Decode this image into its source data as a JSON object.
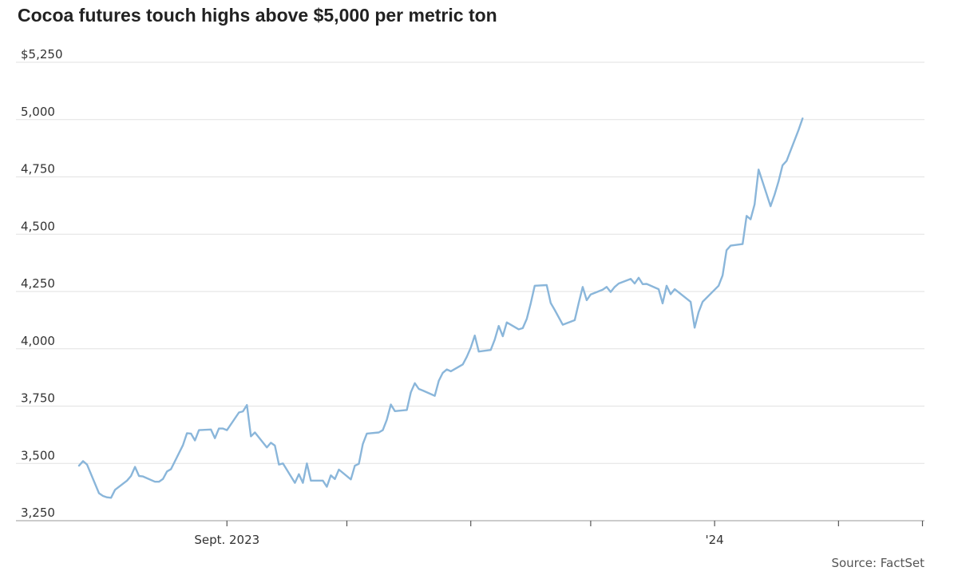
{
  "chart_data": {
    "type": "line",
    "title": "Cocoa futures touch highs above $5,000 per metric ton",
    "source": "Source: FactSet",
    "xlabel": "",
    "ylabel": "",
    "ylim": [
      3250,
      5250
    ],
    "y_ticks": [
      {
        "value": 5250,
        "label": "$5,250"
      },
      {
        "value": 5000,
        "label": "5,000"
      },
      {
        "value": 4750,
        "label": "4,750"
      },
      {
        "value": 4500,
        "label": "4,500"
      },
      {
        "value": 4250,
        "label": "4,250"
      },
      {
        "value": 4000,
        "label": "4,000"
      },
      {
        "value": 3750,
        "label": "3,750"
      },
      {
        "value": 3500,
        "label": "3,500"
      },
      {
        "value": 3250,
        "label": "3,250"
      }
    ],
    "x_range": [
      "2023-07-26",
      "2024-02-21"
    ],
    "x_ticks": [
      {
        "date": "2023-09-01",
        "label": "Sept. 2023"
      },
      {
        "date": "2023-10-01",
        "label": ""
      },
      {
        "date": "2023-11-01",
        "label": ""
      },
      {
        "date": "2023-12-01",
        "label": ""
      },
      {
        "date": "2024-01-01",
        "label": "'24"
      },
      {
        "date": "2024-02-01",
        "label": ""
      },
      {
        "date": "2024-02-22",
        "label": ""
      }
    ],
    "grid": true,
    "line_color": "#8ab6da",
    "series": [
      {
        "name": "",
        "points": [
          [
            "2023-07-26",
            3490
          ],
          [
            "2023-07-27",
            3510
          ],
          [
            "2023-07-28",
            3495
          ],
          [
            "2023-07-31",
            3370
          ],
          [
            "2023-08-01",
            3358
          ],
          [
            "2023-08-02",
            3352
          ],
          [
            "2023-08-03",
            3350
          ],
          [
            "2023-08-04",
            3385
          ],
          [
            "2023-08-07",
            3425
          ],
          [
            "2023-08-08",
            3445
          ],
          [
            "2023-08-09",
            3485
          ],
          [
            "2023-08-10",
            3445
          ],
          [
            "2023-08-11",
            3443
          ],
          [
            "2023-08-14",
            3420
          ],
          [
            "2023-08-15",
            3420
          ],
          [
            "2023-08-16",
            3432
          ],
          [
            "2023-08-17",
            3465
          ],
          [
            "2023-08-18",
            3475
          ],
          [
            "2023-08-21",
            3580
          ],
          [
            "2023-08-22",
            3632
          ],
          [
            "2023-08-23",
            3630
          ],
          [
            "2023-08-24",
            3600
          ],
          [
            "2023-08-25",
            3645
          ],
          [
            "2023-08-28",
            3648
          ],
          [
            "2023-08-29",
            3610
          ],
          [
            "2023-08-30",
            3652
          ],
          [
            "2023-08-31",
            3652
          ],
          [
            "2023-09-01",
            3645
          ],
          [
            "2023-09-04",
            3722
          ],
          [
            "2023-09-05",
            3727
          ],
          [
            "2023-09-06",
            3755
          ],
          [
            "2023-09-07",
            3618
          ],
          [
            "2023-09-08",
            3635
          ],
          [
            "2023-09-11",
            3570
          ],
          [
            "2023-09-12",
            3590
          ],
          [
            "2023-09-13",
            3578
          ],
          [
            "2023-09-14",
            3495
          ],
          [
            "2023-09-15",
            3500
          ],
          [
            "2023-09-18",
            3415
          ],
          [
            "2023-09-19",
            3453
          ],
          [
            "2023-09-20",
            3415
          ],
          [
            "2023-09-21",
            3500
          ],
          [
            "2023-09-22",
            3425
          ],
          [
            "2023-09-25",
            3425
          ],
          [
            "2023-09-26",
            3398
          ],
          [
            "2023-09-27",
            3448
          ],
          [
            "2023-09-28",
            3432
          ],
          [
            "2023-09-29",
            3473
          ],
          [
            "2023-10-02",
            3430
          ],
          [
            "2023-10-03",
            3490
          ],
          [
            "2023-10-04",
            3498
          ],
          [
            "2023-10-05",
            3585
          ],
          [
            "2023-10-06",
            3630
          ],
          [
            "2023-10-09",
            3635
          ],
          [
            "2023-10-10",
            3645
          ],
          [
            "2023-10-11",
            3690
          ],
          [
            "2023-10-12",
            3757
          ],
          [
            "2023-10-13",
            3728
          ],
          [
            "2023-10-16",
            3733
          ],
          [
            "2023-10-17",
            3810
          ],
          [
            "2023-10-18",
            3850
          ],
          [
            "2023-10-19",
            3825
          ],
          [
            "2023-10-20",
            3818
          ],
          [
            "2023-10-23",
            3795
          ],
          [
            "2023-10-24",
            3860
          ],
          [
            "2023-10-25",
            3895
          ],
          [
            "2023-10-26",
            3910
          ],
          [
            "2023-10-27",
            3902
          ],
          [
            "2023-10-30",
            3932
          ],
          [
            "2023-10-31",
            3965
          ],
          [
            "2023-11-01",
            4005
          ],
          [
            "2023-11-02",
            4058
          ],
          [
            "2023-11-03",
            3988
          ],
          [
            "2023-11-06",
            3995
          ],
          [
            "2023-11-07",
            4040
          ],
          [
            "2023-11-08",
            4100
          ],
          [
            "2023-11-09",
            4055
          ],
          [
            "2023-11-10",
            4115
          ],
          [
            "2023-11-13",
            4085
          ],
          [
            "2023-11-14",
            4090
          ],
          [
            "2023-11-15",
            4130
          ],
          [
            "2023-11-16",
            4198
          ],
          [
            "2023-11-17",
            4275
          ],
          [
            "2023-11-20",
            4278
          ],
          [
            "2023-11-21",
            4200
          ],
          [
            "2023-11-22",
            4170
          ],
          [
            "2023-11-24",
            4105
          ],
          [
            "2023-11-27",
            4125
          ],
          [
            "2023-11-28",
            4200
          ],
          [
            "2023-11-29",
            4270
          ],
          [
            "2023-11-30",
            4212
          ],
          [
            "2023-12-01",
            4237
          ],
          [
            "2023-12-04",
            4258
          ],
          [
            "2023-12-05",
            4270
          ],
          [
            "2023-12-06",
            4248
          ],
          [
            "2023-12-07",
            4270
          ],
          [
            "2023-12-08",
            4285
          ],
          [
            "2023-12-11",
            4305
          ],
          [
            "2023-12-12",
            4285
          ],
          [
            "2023-12-13",
            4310
          ],
          [
            "2023-12-14",
            4282
          ],
          [
            "2023-12-15",
            4283
          ],
          [
            "2023-12-18",
            4260
          ],
          [
            "2023-12-19",
            4198
          ],
          [
            "2023-12-20",
            4275
          ],
          [
            "2023-12-21",
            4238
          ],
          [
            "2023-12-22",
            4260
          ],
          [
            "2023-12-26",
            4205
          ],
          [
            "2023-12-27",
            4092
          ],
          [
            "2023-12-28",
            4160
          ],
          [
            "2023-12-29",
            4205
          ],
          [
            "2024-01-02",
            4275
          ],
          [
            "2024-01-03",
            4320
          ],
          [
            "2024-01-04",
            4430
          ],
          [
            "2024-01-05",
            4450
          ],
          [
            "2024-01-08",
            4457
          ],
          [
            "2024-01-09",
            4580
          ],
          [
            "2024-01-10",
            4565
          ],
          [
            "2024-01-11",
            4630
          ],
          [
            "2024-01-12",
            4782
          ],
          [
            "2024-01-15",
            4622
          ],
          [
            "2024-01-16",
            4672
          ],
          [
            "2024-01-17",
            4730
          ],
          [
            "2024-01-18",
            4800
          ],
          [
            "2024-01-19",
            4820
          ],
          [
            "2024-01-22",
            4955
          ],
          [
            "2024-01-23",
            5005
          ]
        ]
      }
    ]
  }
}
